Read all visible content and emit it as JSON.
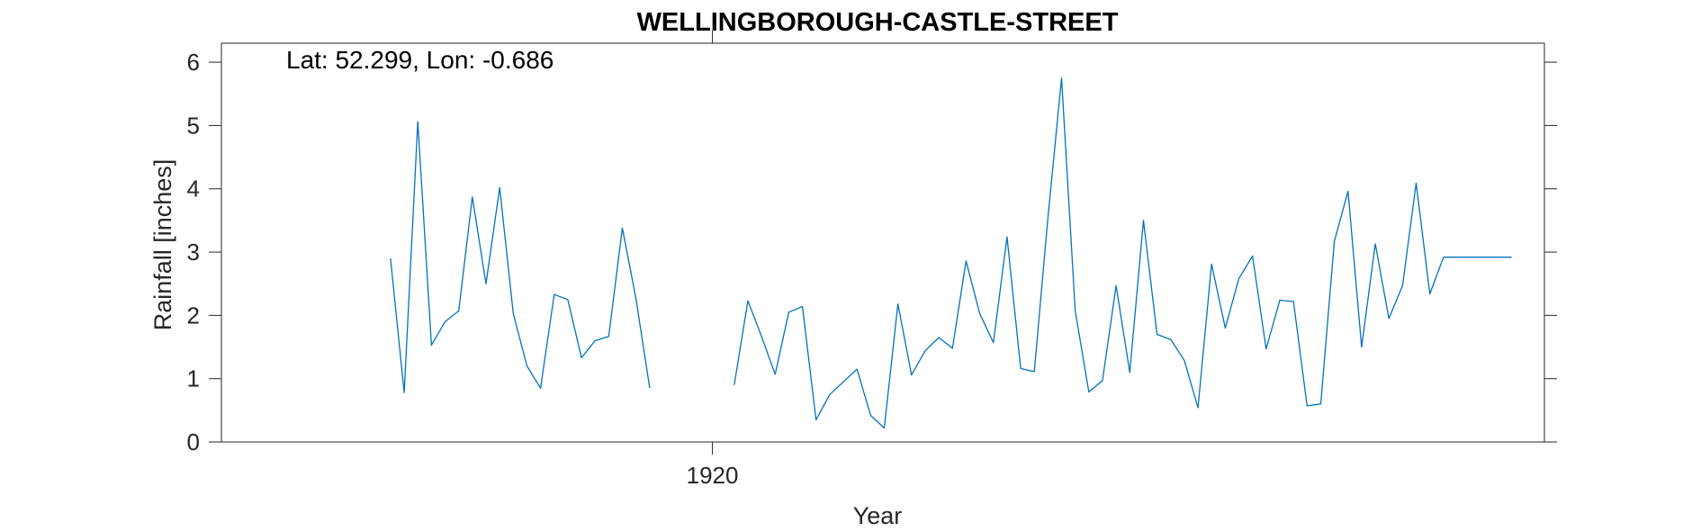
{
  "chart_data": {
    "type": "line",
    "title": "WELLINGBOROUGH-CASTLE-STREET",
    "annotation": "Lat: 52.299, Lon: -0.686",
    "xlabel": "Year",
    "ylabel": "Rainfall [inches]",
    "xlim": [
      1902.0,
      1950.5
    ],
    "ylim": [
      0,
      6.3
    ],
    "x_ticks": [
      1920
    ],
    "x_tick_labels": [
      "1920"
    ],
    "y_ticks": [
      0,
      1,
      2,
      3,
      4,
      5,
      6
    ],
    "y_tick_labels": [
      "0",
      "1",
      "2",
      "3",
      "4",
      "5",
      "6"
    ],
    "grid": false,
    "colors": {
      "series": "#0072BD",
      "axis": "#262626"
    },
    "series": [
      {
        "segments": [
          {
            "x": [
              1908.2,
              1908.7,
              1909.2,
              1909.7,
              1910.2,
              1910.7,
              1911.2,
              1911.7,
              1912.2,
              1912.7,
              1913.2,
              1913.7,
              1914.2,
              1914.7,
              1915.2,
              1915.7,
              1916.2,
              1916.7,
              1917.2,
              1917.7
            ],
            "y": [
              2.9,
              0.78,
              5.06,
              1.53,
              1.9,
              2.07,
              3.87,
              2.5,
              4.02,
              2.03,
              1.2,
              0.85,
              2.33,
              2.25,
              1.33,
              1.6,
              1.67,
              3.38,
              2.26,
              0.85
            ]
          },
          {
            "x": [
              1920.8,
              1921.3,
              1921.8,
              1922.3,
              1922.8,
              1923.3,
              1923.8,
              1924.3,
              1924.8,
              1925.3,
              1925.8,
              1926.3,
              1926.8,
              1927.3,
              1927.8,
              1928.3,
              1928.8,
              1929.3,
              1929.8,
              1930.3,
              1930.8,
              1931.3,
              1931.8,
              1932.3,
              1932.8,
              1933.3,
              1933.8,
              1934.3,
              1934.8,
              1935.3,
              1935.8,
              1936.3,
              1936.8,
              1937.3,
              1937.8,
              1938.3,
              1938.8,
              1939.3,
              1939.8,
              1940.3,
              1940.8,
              1941.3,
              1941.8,
              1942.3,
              1942.8,
              1943.3,
              1943.8,
              1944.3,
              1944.8,
              1945.3,
              1945.8,
              1946.3,
              1946.8,
              1947.3,
              1947.8,
              1948.3,
              1948.8,
              1949.3
            ],
            "y": [
              0.9,
              2.23,
              1.67,
              1.07,
              2.05,
              2.14,
              0.35,
              0.75,
              0.95,
              1.15,
              0.42,
              0.22,
              2.18,
              1.06,
              1.44,
              1.65,
              1.48,
              2.86,
              2.03,
              1.57,
              3.24,
              1.16,
              1.11,
              3.55,
              5.75,
              2.07,
              0.79,
              0.97,
              2.47,
              1.1,
              3.5,
              1.7,
              1.62,
              1.29,
              0.54,
              2.81,
              1.8,
              2.58,
              2.94,
              1.47,
              2.24,
              2.22,
              0.57,
              0.6,
              3.17,
              3.96,
              1.5,
              3.13,
              1.95,
              2.47,
              4.09,
              2.34,
              2.92,
              2.92,
              2.92,
              2.92,
              2.92,
              2.92
            ]
          }
        ]
      }
    ]
  }
}
